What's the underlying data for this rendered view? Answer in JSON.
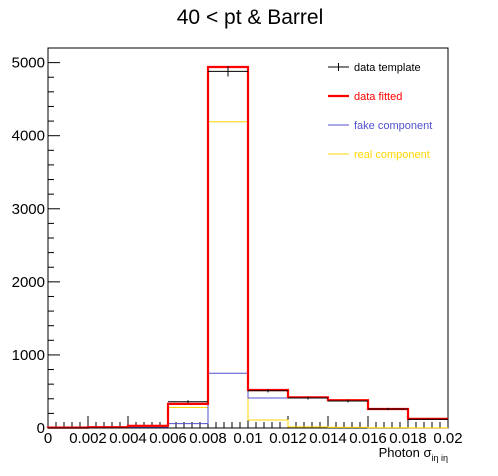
{
  "chart_data": {
    "type": "histogram",
    "title": "40 < pt  & Barrel",
    "xlabel": {
      "base": "Photon σ",
      "subscript": "iη iη"
    },
    "ylabel": "",
    "xlim": [
      0,
      0.02
    ],
    "ylim": [
      0,
      5200
    ],
    "bin_edges": [
      0,
      0.002,
      0.004,
      0.006,
      0.008,
      0.01,
      0.012,
      0.014,
      0.016,
      0.018,
      0.02
    ],
    "x_ticks": [
      0,
      0.002,
      0.004,
      0.006,
      0.008,
      0.01,
      0.012,
      0.014,
      0.016,
      0.018,
      0.02
    ],
    "x_tick_labels": [
      "0",
      "0.002",
      "0.004",
      "0.006",
      "0.008",
      "0.01",
      "0.012",
      "0.014",
      "0.016",
      "0.018",
      "0.02"
    ],
    "y_ticks": [
      0,
      1000,
      2000,
      3000,
      4000,
      5000
    ],
    "y_tick_labels": [
      "0",
      "1000",
      "2000",
      "3000",
      "4000",
      "5000"
    ],
    "grid": false,
    "legend_position": "top-right",
    "series": [
      {
        "name": "data template",
        "style": "points-with-errors",
        "color": "#000000",
        "values": [
          0,
          0,
          0,
          360,
          4880,
          510,
          410,
          370,
          260,
          120
        ],
        "errors": [
          0,
          0,
          0,
          20,
          70,
          22,
          20,
          19,
          16,
          11
        ]
      },
      {
        "name": "data fitted",
        "style": "step",
        "color": "#ff0000",
        "values": [
          5,
          10,
          30,
          330,
          4940,
          520,
          420,
          380,
          260,
          125
        ]
      },
      {
        "name": "fake component",
        "style": "step",
        "color": "#5050d0",
        "values": [
          2,
          4,
          10,
          60,
          750,
          410,
          410,
          370,
          260,
          120
        ]
      },
      {
        "name": "real component",
        "style": "step",
        "color": "#ffd700",
        "values": [
          3,
          5,
          15,
          280,
          4190,
          110,
          15,
          8,
          3,
          2
        ]
      }
    ]
  }
}
